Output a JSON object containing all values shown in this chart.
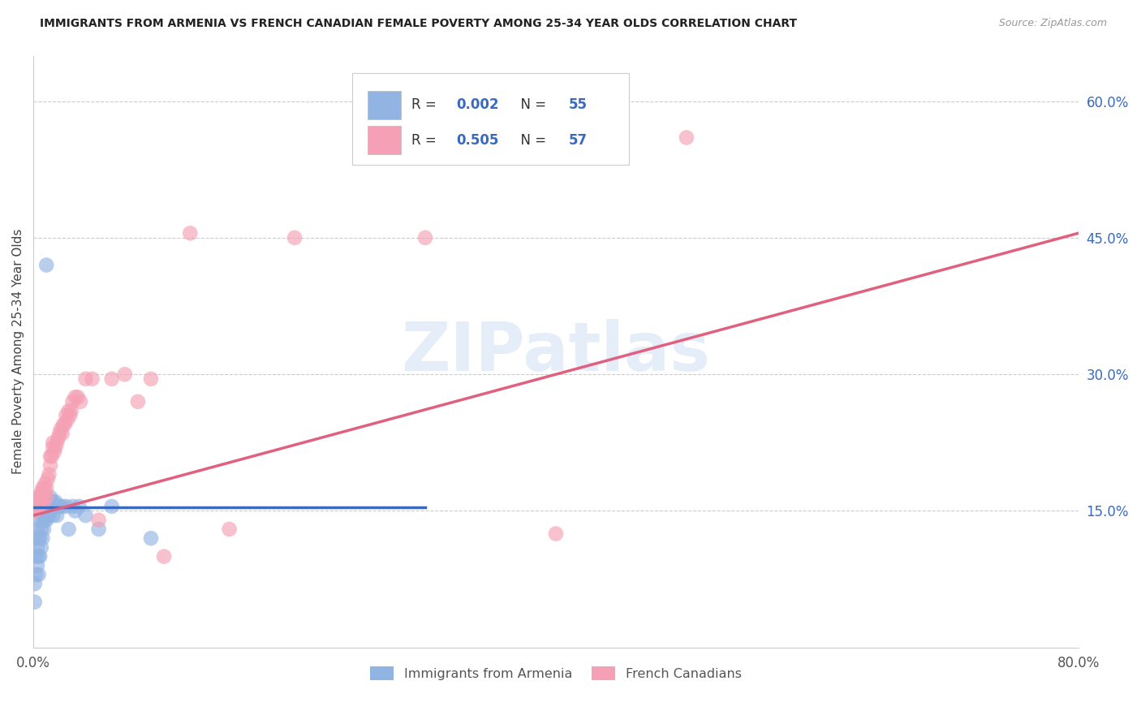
{
  "title": "IMMIGRANTS FROM ARMENIA VS FRENCH CANADIAN FEMALE POVERTY AMONG 25-34 YEAR OLDS CORRELATION CHART",
  "source": "Source: ZipAtlas.com",
  "ylabel": "Female Poverty Among 25-34 Year Olds",
  "xlim": [
    0.0,
    0.8
  ],
  "ylim": [
    0.0,
    0.65
  ],
  "yticks_right": [
    0.15,
    0.3,
    0.45,
    0.6
  ],
  "ytick_right_labels": [
    "15.0%",
    "30.0%",
    "45.0%",
    "60.0%"
  ],
  "watermark": "ZIPatlas",
  "color_blue": "#92b4e3",
  "color_pink": "#f5a0b5",
  "trendline_blue": "#3a6abf",
  "trendline_pink": "#e06080",
  "grid_color": "#cccccc",
  "blue_scatter_x": [
    0.001,
    0.001,
    0.002,
    0.002,
    0.002,
    0.003,
    0.003,
    0.003,
    0.004,
    0.004,
    0.004,
    0.004,
    0.005,
    0.005,
    0.005,
    0.006,
    0.006,
    0.006,
    0.006,
    0.007,
    0.007,
    0.007,
    0.008,
    0.008,
    0.008,
    0.009,
    0.009,
    0.01,
    0.01,
    0.01,
    0.011,
    0.011,
    0.012,
    0.012,
    0.013,
    0.013,
    0.014,
    0.015,
    0.015,
    0.016,
    0.017,
    0.018,
    0.019,
    0.02,
    0.022,
    0.025,
    0.027,
    0.03,
    0.032,
    0.035,
    0.04,
    0.05,
    0.06,
    0.09,
    0.01
  ],
  "blue_scatter_y": [
    0.05,
    0.07,
    0.08,
    0.1,
    0.12,
    0.09,
    0.11,
    0.13,
    0.08,
    0.1,
    0.12,
    0.14,
    0.1,
    0.12,
    0.15,
    0.11,
    0.13,
    0.15,
    0.16,
    0.12,
    0.14,
    0.155,
    0.13,
    0.15,
    0.16,
    0.14,
    0.155,
    0.14,
    0.155,
    0.165,
    0.15,
    0.16,
    0.145,
    0.16,
    0.15,
    0.165,
    0.16,
    0.145,
    0.16,
    0.155,
    0.16,
    0.145,
    0.155,
    0.155,
    0.155,
    0.155,
    0.13,
    0.155,
    0.15,
    0.155,
    0.145,
    0.13,
    0.155,
    0.12,
    0.42
  ],
  "pink_scatter_x": [
    0.001,
    0.002,
    0.003,
    0.003,
    0.004,
    0.004,
    0.005,
    0.005,
    0.006,
    0.006,
    0.007,
    0.007,
    0.008,
    0.008,
    0.009,
    0.009,
    0.01,
    0.01,
    0.011,
    0.012,
    0.013,
    0.013,
    0.014,
    0.015,
    0.015,
    0.016,
    0.017,
    0.018,
    0.019,
    0.02,
    0.021,
    0.022,
    0.023,
    0.024,
    0.025,
    0.026,
    0.027,
    0.028,
    0.029,
    0.03,
    0.032,
    0.034,
    0.036,
    0.04,
    0.045,
    0.05,
    0.06,
    0.07,
    0.08,
    0.09,
    0.1,
    0.12,
    0.15,
    0.2,
    0.3,
    0.4,
    0.5
  ],
  "pink_scatter_y": [
    0.15,
    0.155,
    0.155,
    0.165,
    0.155,
    0.16,
    0.155,
    0.165,
    0.16,
    0.17,
    0.165,
    0.175,
    0.16,
    0.175,
    0.17,
    0.18,
    0.165,
    0.175,
    0.185,
    0.19,
    0.2,
    0.21,
    0.21,
    0.22,
    0.225,
    0.215,
    0.22,
    0.225,
    0.23,
    0.235,
    0.24,
    0.235,
    0.245,
    0.245,
    0.255,
    0.25,
    0.26,
    0.255,
    0.26,
    0.27,
    0.275,
    0.275,
    0.27,
    0.295,
    0.295,
    0.14,
    0.295,
    0.3,
    0.27,
    0.295,
    0.1,
    0.455,
    0.13,
    0.45,
    0.45,
    0.125,
    0.56
  ],
  "blue_trend_x": [
    0.0,
    0.3
  ],
  "blue_trend_y": [
    0.154,
    0.154
  ],
  "pink_trend_x0": 0.0,
  "pink_trend_x1": 0.8,
  "pink_trend_y0": 0.145,
  "pink_trend_y1": 0.455
}
